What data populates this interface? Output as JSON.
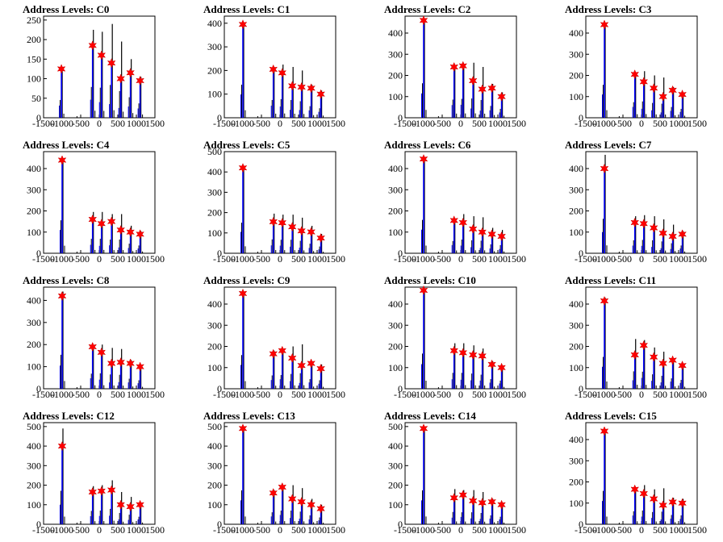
{
  "chart_data": [
    {
      "type": "histogram",
      "title": "Address Levels: C0",
      "xlim": [
        -1500,
        1500
      ],
      "ylim": [
        0,
        260
      ],
      "yticks": [
        0,
        50,
        100,
        150,
        200,
        250
      ],
      "xticks": [
        -1500,
        -1000,
        -500,
        0,
        500,
        1000,
        1500
      ],
      "peaks": [
        {
          "x": -1020,
          "black": 130,
          "blue": 125,
          "star": 125
        },
        {
          "x": -180,
          "black": 225,
          "blue": 185,
          "star": 185
        },
        {
          "x": 60,
          "black": 220,
          "blue": 160,
          "star": 160
        },
        {
          "x": 330,
          "black": 240,
          "blue": 140,
          "star": 140
        },
        {
          "x": 580,
          "black": 195,
          "blue": 100,
          "star": 100
        },
        {
          "x": 840,
          "black": 150,
          "blue": 115,
          "star": 115
        },
        {
          "x": 1100,
          "black": 105,
          "blue": 95,
          "star": 95
        }
      ]
    },
    {
      "type": "histogram",
      "title": "Address Levels: C1",
      "xlim": [
        -1500,
        1500
      ],
      "ylim": [
        0,
        430
      ],
      "yticks": [
        0,
        100,
        200,
        300,
        400
      ],
      "xticks": [
        -1500,
        -1000,
        -500,
        0,
        500,
        1000,
        1500
      ],
      "peaks": [
        {
          "x": -1000,
          "black": 400,
          "blue": 395,
          "star": 395
        },
        {
          "x": -180,
          "black": 215,
          "blue": 205,
          "star": 205
        },
        {
          "x": 60,
          "black": 225,
          "blue": 190,
          "star": 190
        },
        {
          "x": 330,
          "black": 215,
          "blue": 135,
          "star": 135
        },
        {
          "x": 580,
          "black": 200,
          "blue": 130,
          "star": 130
        },
        {
          "x": 840,
          "black": 140,
          "blue": 125,
          "star": 125
        },
        {
          "x": 1100,
          "black": 115,
          "blue": 100,
          "star": 100
        }
      ]
    },
    {
      "type": "histogram",
      "title": "Address Levels: C2",
      "xlim": [
        -1500,
        1500
      ],
      "ylim": [
        0,
        480
      ],
      "yticks": [
        0,
        100,
        200,
        300,
        400
      ],
      "xticks": [
        -1500,
        -1000,
        -500,
        0,
        500,
        1000,
        1500
      ],
      "peaks": [
        {
          "x": -1000,
          "black": 465,
          "blue": 460,
          "star": 460
        },
        {
          "x": -180,
          "black": 245,
          "blue": 240,
          "star": 240
        },
        {
          "x": 60,
          "black": 255,
          "blue": 245,
          "star": 245
        },
        {
          "x": 330,
          "black": 260,
          "blue": 175,
          "star": 175
        },
        {
          "x": 580,
          "black": 240,
          "blue": 135,
          "star": 135
        },
        {
          "x": 840,
          "black": 160,
          "blue": 140,
          "star": 140
        },
        {
          "x": 1100,
          "black": 120,
          "blue": 100,
          "star": 100
        }
      ]
    },
    {
      "type": "histogram",
      "title": "Address Levels: C3",
      "xlim": [
        -1500,
        1500
      ],
      "ylim": [
        0,
        480
      ],
      "yticks": [
        0,
        100,
        200,
        300,
        400
      ],
      "xticks": [
        -1500,
        -1000,
        -500,
        0,
        500,
        1000,
        1500
      ],
      "peaks": [
        {
          "x": -1000,
          "black": 445,
          "blue": 440,
          "star": 440
        },
        {
          "x": -180,
          "black": 210,
          "blue": 205,
          "star": 205
        },
        {
          "x": 60,
          "black": 220,
          "blue": 170,
          "star": 170
        },
        {
          "x": 330,
          "black": 200,
          "blue": 140,
          "star": 140
        },
        {
          "x": 580,
          "black": 190,
          "blue": 100,
          "star": 100
        },
        {
          "x": 840,
          "black": 145,
          "blue": 130,
          "star": 130
        },
        {
          "x": 1100,
          "black": 120,
          "blue": 110,
          "star": 110
        }
      ]
    },
    {
      "type": "histogram",
      "title": "Address Levels: C4",
      "xlim": [
        -1500,
        1500
      ],
      "ylim": [
        0,
        480
      ],
      "yticks": [
        0,
        100,
        200,
        300,
        400
      ],
      "xticks": [
        -1500,
        -1000,
        -500,
        0,
        500,
        1000,
        1500
      ],
      "peaks": [
        {
          "x": -1000,
          "black": 445,
          "blue": 440,
          "star": 440
        },
        {
          "x": -180,
          "black": 195,
          "blue": 160,
          "star": 160
        },
        {
          "x": 60,
          "black": 195,
          "blue": 140,
          "star": 140
        },
        {
          "x": 330,
          "black": 185,
          "blue": 150,
          "star": 150
        },
        {
          "x": 580,
          "black": 185,
          "blue": 110,
          "star": 110
        },
        {
          "x": 840,
          "black": 130,
          "blue": 100,
          "star": 100
        },
        {
          "x": 1100,
          "black": 105,
          "blue": 90,
          "star": 90
        }
      ]
    },
    {
      "type": "histogram",
      "title": "Address Levels: C5",
      "xlim": [
        -1500,
        1500
      ],
      "ylim": [
        0,
        500
      ],
      "yticks": [
        0,
        100,
        200,
        300,
        400,
        500
      ],
      "xticks": [
        -1500,
        -1000,
        -500,
        0,
        500,
        1000,
        1500
      ],
      "peaks": [
        {
          "x": -1000,
          "black": 430,
          "blue": 420,
          "star": 420
        },
        {
          "x": -180,
          "black": 195,
          "blue": 155,
          "star": 155
        },
        {
          "x": 60,
          "black": 190,
          "blue": 150,
          "star": 150
        },
        {
          "x": 330,
          "black": 190,
          "blue": 130,
          "star": 130
        },
        {
          "x": 580,
          "black": 175,
          "blue": 110,
          "star": 110
        },
        {
          "x": 840,
          "black": 135,
          "blue": 105,
          "star": 105
        },
        {
          "x": 1100,
          "black": 95,
          "blue": 75,
          "star": 75
        }
      ]
    },
    {
      "type": "histogram",
      "title": "Address Levels: C6",
      "xlim": [
        -1500,
        1500
      ],
      "ylim": [
        0,
        480
      ],
      "yticks": [
        0,
        100,
        200,
        300,
        400
      ],
      "xticks": [
        -1500,
        -1000,
        -500,
        0,
        500,
        1000,
        1500
      ],
      "peaks": [
        {
          "x": -1000,
          "black": 450,
          "blue": 445,
          "star": 445
        },
        {
          "x": -180,
          "black": 165,
          "blue": 155,
          "star": 155
        },
        {
          "x": 60,
          "black": 185,
          "blue": 145,
          "star": 145
        },
        {
          "x": 330,
          "black": 175,
          "blue": 115,
          "star": 115
        },
        {
          "x": 580,
          "black": 170,
          "blue": 100,
          "star": 100
        },
        {
          "x": 840,
          "black": 120,
          "blue": 90,
          "star": 90
        },
        {
          "x": 1100,
          "black": 110,
          "blue": 80,
          "star": 80
        }
      ]
    },
    {
      "type": "histogram",
      "title": "Address Levels: C7",
      "xlim": [
        -1500,
        1500
      ],
      "ylim": [
        0,
        480
      ],
      "yticks": [
        0,
        100,
        200,
        300,
        400
      ],
      "xticks": [
        -1500,
        -1000,
        -500,
        0,
        500,
        1000,
        1500
      ],
      "peaks": [
        {
          "x": -1000,
          "black": 465,
          "blue": 400,
          "star": 400
        },
        {
          "x": -180,
          "black": 175,
          "blue": 145,
          "star": 145
        },
        {
          "x": 60,
          "black": 180,
          "blue": 140,
          "star": 140
        },
        {
          "x": 330,
          "black": 175,
          "blue": 120,
          "star": 120
        },
        {
          "x": 580,
          "black": 160,
          "blue": 95,
          "star": 95
        },
        {
          "x": 840,
          "black": 135,
          "blue": 80,
          "star": 80
        },
        {
          "x": 1100,
          "black": 105,
          "blue": 90,
          "star": 90
        }
      ]
    },
    {
      "type": "histogram",
      "title": "Address Levels: C8",
      "xlim": [
        -1500,
        1500
      ],
      "ylim": [
        0,
        460
      ],
      "yticks": [
        0,
        100,
        200,
        300,
        400
      ],
      "xticks": [
        -1500,
        -1000,
        -500,
        0,
        500,
        1000,
        1500
      ],
      "peaks": [
        {
          "x": -1000,
          "black": 440,
          "blue": 420,
          "star": 420
        },
        {
          "x": -180,
          "black": 195,
          "blue": 190,
          "star": 190
        },
        {
          "x": 60,
          "black": 200,
          "blue": 165,
          "star": 165
        },
        {
          "x": 330,
          "black": 185,
          "blue": 115,
          "star": 115
        },
        {
          "x": 580,
          "black": 180,
          "blue": 120,
          "star": 120
        },
        {
          "x": 840,
          "black": 130,
          "blue": 115,
          "star": 115
        },
        {
          "x": 1100,
          "black": 110,
          "blue": 100,
          "star": 100
        }
      ]
    },
    {
      "type": "histogram",
      "title": "Address Levels: C9",
      "xlim": [
        -1500,
        1500
      ],
      "ylim": [
        0,
        480
      ],
      "yticks": [
        0,
        100,
        200,
        300,
        400
      ],
      "xticks": [
        -1500,
        -1000,
        -500,
        0,
        500,
        1000,
        1500
      ],
      "peaks": [
        {
          "x": -1000,
          "black": 455,
          "blue": 450,
          "star": 450
        },
        {
          "x": -180,
          "black": 180,
          "blue": 165,
          "star": 165
        },
        {
          "x": 60,
          "black": 185,
          "blue": 180,
          "star": 180
        },
        {
          "x": 330,
          "black": 200,
          "blue": 145,
          "star": 145
        },
        {
          "x": 580,
          "black": 210,
          "blue": 110,
          "star": 110
        },
        {
          "x": 840,
          "black": 130,
          "blue": 120,
          "star": 120
        },
        {
          "x": 1100,
          "black": 115,
          "blue": 95,
          "star": 95
        }
      ]
    },
    {
      "type": "histogram",
      "title": "Address Levels: C10",
      "xlim": [
        -1500,
        1500
      ],
      "ylim": [
        0,
        480
      ],
      "yticks": [
        0,
        100,
        200,
        300,
        400
      ],
      "xticks": [
        -1500,
        -1000,
        -500,
        0,
        500,
        1000,
        1500
      ],
      "peaks": [
        {
          "x": -1000,
          "black": 475,
          "blue": 465,
          "star": 465
        },
        {
          "x": -180,
          "black": 215,
          "blue": 180,
          "star": 180
        },
        {
          "x": 60,
          "black": 215,
          "blue": 170,
          "star": 170
        },
        {
          "x": 330,
          "black": 205,
          "blue": 160,
          "star": 160
        },
        {
          "x": 580,
          "black": 190,
          "blue": 155,
          "star": 155
        },
        {
          "x": 840,
          "black": 130,
          "blue": 115,
          "star": 115
        },
        {
          "x": 1100,
          "black": 110,
          "blue": 100,
          "star": 100
        }
      ]
    },
    {
      "type": "histogram",
      "title": "Address Levels: C11",
      "xlim": [
        -1500,
        1500
      ],
      "ylim": [
        0,
        480
      ],
      "yticks": [
        0,
        100,
        200,
        300,
        400
      ],
      "xticks": [
        -1500,
        -1000,
        -500,
        0,
        500,
        1000,
        1500
      ],
      "peaks": [
        {
          "x": -1000,
          "black": 430,
          "blue": 415,
          "star": 415
        },
        {
          "x": -180,
          "black": 235,
          "blue": 160,
          "star": 160
        },
        {
          "x": 60,
          "black": 230,
          "blue": 205,
          "star": 205
        },
        {
          "x": 330,
          "black": 195,
          "blue": 150,
          "star": 150
        },
        {
          "x": 580,
          "black": 175,
          "blue": 120,
          "star": 120
        },
        {
          "x": 840,
          "black": 140,
          "blue": 135,
          "star": 135
        },
        {
          "x": 1100,
          "black": 120,
          "blue": 110,
          "star": 110
        }
      ]
    },
    {
      "type": "histogram",
      "title": "Address Levels: C12",
      "xlim": [
        -1500,
        1500
      ],
      "ylim": [
        0,
        520
      ],
      "yticks": [
        0,
        100,
        200,
        300,
        400,
        500
      ],
      "xticks": [
        -1500,
        -1000,
        -500,
        0,
        500,
        1000,
        1500
      ],
      "peaks": [
        {
          "x": -1000,
          "black": 490,
          "blue": 400,
          "star": 400
        },
        {
          "x": -180,
          "black": 195,
          "blue": 165,
          "star": 165
        },
        {
          "x": 60,
          "black": 200,
          "blue": 170,
          "star": 170
        },
        {
          "x": 330,
          "black": 225,
          "blue": 175,
          "star": 175
        },
        {
          "x": 580,
          "black": 165,
          "blue": 100,
          "star": 100
        },
        {
          "x": 840,
          "black": 140,
          "blue": 90,
          "star": 90
        },
        {
          "x": 1100,
          "black": 110,
          "blue": 100,
          "star": 100
        }
      ]
    },
    {
      "type": "histogram",
      "title": "Address Levels: C13",
      "xlim": [
        -1500,
        1500
      ],
      "ylim": [
        0,
        520
      ],
      "yticks": [
        0,
        100,
        200,
        300,
        400,
        500
      ],
      "xticks": [
        -1500,
        -1000,
        -500,
        0,
        500,
        1000,
        1500
      ],
      "peaks": [
        {
          "x": -1000,
          "black": 495,
          "blue": 490,
          "star": 490
        },
        {
          "x": -180,
          "black": 175,
          "blue": 160,
          "star": 160
        },
        {
          "x": 60,
          "black": 200,
          "blue": 190,
          "star": 190
        },
        {
          "x": 330,
          "black": 200,
          "blue": 130,
          "star": 130
        },
        {
          "x": 580,
          "black": 185,
          "blue": 115,
          "star": 115
        },
        {
          "x": 840,
          "black": 130,
          "blue": 100,
          "star": 100
        },
        {
          "x": 1100,
          "black": 100,
          "blue": 80,
          "star": 80
        }
      ]
    },
    {
      "type": "histogram",
      "title": "Address Levels: C14",
      "xlim": [
        -1500,
        1500
      ],
      "ylim": [
        0,
        520
      ],
      "yticks": [
        0,
        100,
        200,
        300,
        400,
        500
      ],
      "xticks": [
        -1500,
        -1000,
        -500,
        0,
        500,
        1000,
        1500
      ],
      "peaks": [
        {
          "x": -1000,
          "black": 495,
          "blue": 490,
          "star": 490
        },
        {
          "x": -180,
          "black": 180,
          "blue": 135,
          "star": 135
        },
        {
          "x": 60,
          "black": 175,
          "blue": 150,
          "star": 150
        },
        {
          "x": 330,
          "black": 175,
          "blue": 120,
          "star": 120
        },
        {
          "x": 580,
          "black": 165,
          "blue": 110,
          "star": 110
        },
        {
          "x": 840,
          "black": 130,
          "blue": 115,
          "star": 115
        },
        {
          "x": 1100,
          "black": 110,
          "blue": 100,
          "star": 100
        }
      ]
    },
    {
      "type": "histogram",
      "title": "Address Levels: C15",
      "xlim": [
        -1500,
        1500
      ],
      "ylim": [
        0,
        480
      ],
      "yticks": [
        0,
        100,
        200,
        300,
        400
      ],
      "xticks": [
        -1500,
        -1000,
        -500,
        0,
        500,
        1000,
        1500
      ],
      "peaks": [
        {
          "x": -1000,
          "black": 450,
          "blue": 440,
          "star": 440
        },
        {
          "x": -180,
          "black": 175,
          "blue": 165,
          "star": 165
        },
        {
          "x": 60,
          "black": 185,
          "blue": 145,
          "star": 145
        },
        {
          "x": 330,
          "black": 165,
          "blue": 120,
          "star": 120
        },
        {
          "x": 580,
          "black": 170,
          "blue": 90,
          "star": 90
        },
        {
          "x": 840,
          "black": 125,
          "blue": 105,
          "star": 105
        },
        {
          "x": 1100,
          "black": 120,
          "blue": 100,
          "star": 100
        }
      ]
    }
  ],
  "colors": {
    "black_hist": "#000000",
    "blue_hist": "#0000ff",
    "marker": "#ff0000",
    "axis": "#000000"
  }
}
